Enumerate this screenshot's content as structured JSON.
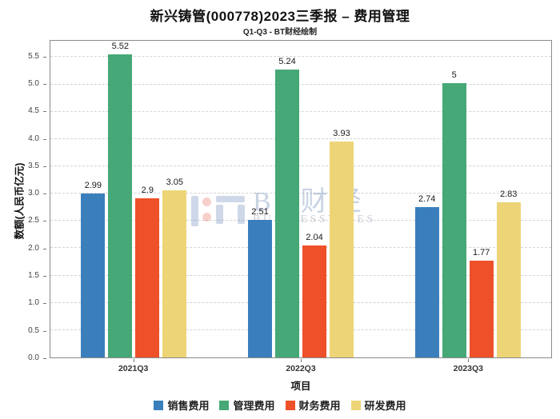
{
  "title": "新兴铸管(000778)2023三季报 – 费用管理",
  "subtitle": "Q1-Q3 - BT财经绘制",
  "watermark": {
    "text": "BT财经",
    "subtext": "BUSINESSTIMES"
  },
  "chart_data": {
    "type": "bar",
    "title": "新兴铸管(000778)2023三季报 – 费用管理",
    "subtitle": "Q1-Q3 - BT财经绘制",
    "categories": [
      "2021Q3",
      "2022Q3",
      "2023Q3"
    ],
    "series": [
      {
        "name": "销售费用",
        "color": "#3a7fbc",
        "values": [
          2.99,
          2.51,
          2.74
        ],
        "labels": [
          "2.99",
          "2.51",
          "2.74"
        ]
      },
      {
        "name": "管理费用",
        "color": "#45a876",
        "values": [
          5.52,
          5.24,
          5.0
        ],
        "labels": [
          "5.52",
          "5.24",
          "5"
        ]
      },
      {
        "name": "财务费用",
        "color": "#ee5029",
        "values": [
          2.9,
          2.04,
          1.77
        ],
        "labels": [
          "2.9",
          "2.04",
          "1.77"
        ]
      },
      {
        "name": "研发费用",
        "color": "#edd577",
        "values": [
          3.05,
          3.93,
          2.83
        ],
        "labels": [
          "3.05",
          "3.93",
          "2.83"
        ]
      }
    ],
    "xlabel": "项目",
    "ylabel": "数额(人民币亿元)",
    "ylim": [
      0,
      5.8
    ],
    "yticks": [
      0.0,
      0.5,
      1.0,
      1.5,
      2.0,
      2.5,
      3.0,
      3.5,
      4.0,
      4.5,
      5.0,
      5.5
    ],
    "grid": "horizontal-dashed",
    "legend_position": "bottom"
  }
}
